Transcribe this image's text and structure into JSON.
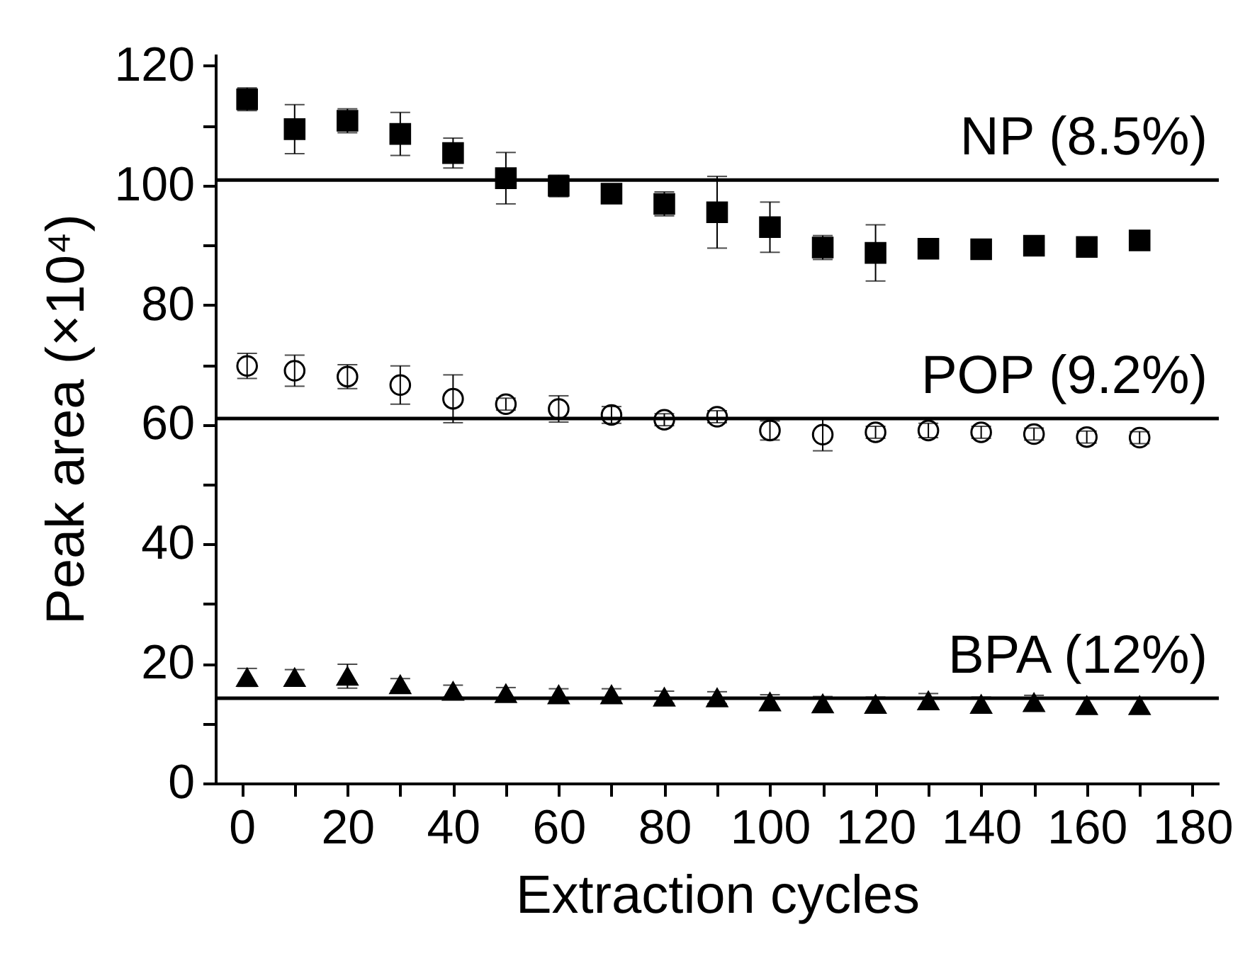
{
  "chart_data": {
    "type": "scatter",
    "xlabel": "Extraction cycles",
    "ylabel": "Peak area (×10⁴)",
    "x": [
      1,
      10,
      20,
      30,
      40,
      50,
      60,
      70,
      80,
      90,
      100,
      110,
      120,
      130,
      140,
      150,
      160,
      170
    ],
    "series": [
      {
        "color": "#000000",
        "marker": "square",
        "values": [
          114.4,
          109.4,
          110.8,
          108.6,
          105.4,
          101.2,
          99.9,
          98.6,
          96.9,
          95.5,
          93.0,
          89.6,
          88.7,
          89.4,
          89.3,
          89.9,
          89.7,
          90.8
        ],
        "errors": [
          1.9,
          4.1,
          2,
          3.6,
          2.5,
          4.3,
          1.8,
          null,
          2,
          6,
          4.2,
          2,
          4.7,
          null,
          null,
          null,
          null,
          null
        ]
      },
      {
        "color": "#000000",
        "marker": "circle",
        "values": [
          69.8,
          69.0,
          68.0,
          66.6,
          64.3,
          63.4,
          62.6,
          61.6,
          60.8,
          61.3,
          59.0,
          58.3,
          58.7,
          59.0,
          58.7,
          58.4,
          57.9,
          57.8
        ],
        "errors": [
          2.1,
          2.6,
          2,
          3.2,
          4,
          1,
          2.2,
          1.4,
          1,
          1,
          1.6,
          2.7,
          1,
          1.2,
          1,
          1,
          1,
          1
        ]
      },
      {
        "color": "#000000",
        "marker": "triangle",
        "values": [
          17.7,
          17.7,
          17.9,
          16.5,
          15.4,
          15.0,
          14.8,
          14.8,
          14.4,
          14.3,
          13.6,
          13.3,
          13.2,
          13.8,
          13.2,
          13.5,
          13.0,
          13.0
        ],
        "errors": [
          1.5,
          1.3,
          2,
          1,
          1,
          1,
          1,
          1,
          1,
          1,
          1.2,
          1.2,
          1.2,
          1.2,
          1.2,
          1.2,
          1.2,
          1.2
        ]
      }
    ],
    "ref_lines": [
      {
        "axis": "y",
        "value": 100.9,
        "label": "NP (8.5%)",
        "color": "#000000"
      },
      {
        "axis": "y",
        "value": 61.0,
        "label": "POP (9.2%)",
        "color": "#000000"
      },
      {
        "axis": "y",
        "value": 14.2,
        "label": "BPA (12%)",
        "color": "#000000"
      }
    ],
    "xlim": [
      -5,
      185
    ],
    "ylim": [
      0,
      122
    ],
    "xticks": [
      0,
      {
        "value": 10,
        "label": null
      },
      20,
      {
        "value": 30,
        "label": null
      },
      40,
      {
        "value": 50,
        "label": null
      },
      60,
      {
        "value": 70,
        "label": null
      },
      80,
      {
        "value": 90,
        "label": null
      },
      100,
      {
        "value": 110,
        "label": null
      },
      120,
      {
        "value": 130,
        "label": null
      },
      140,
      {
        "value": 150,
        "label": null
      },
      160,
      {
        "value": 170,
        "label": null
      },
      180
    ],
    "yticks": [
      0,
      {
        "value": 10,
        "label": null
      },
      20,
      {
        "value": 30,
        "label": null
      },
      40,
      {
        "value": 50,
        "label": null
      },
      60,
      {
        "value": 70,
        "label": null
      },
      80,
      {
        "value": 90,
        "label": null
      },
      100,
      {
        "value": 110,
        "label": null
      },
      120
    ],
    "grid": false
  }
}
